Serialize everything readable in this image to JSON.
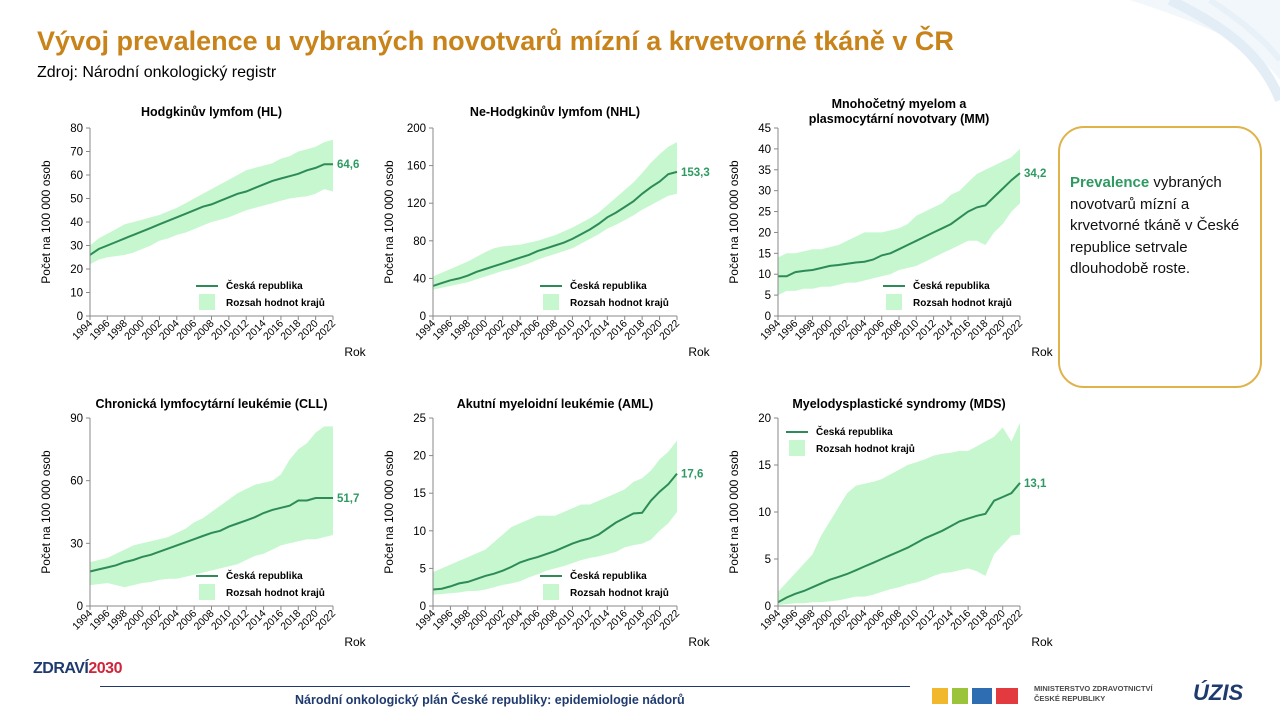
{
  "header": {
    "title": "Vývoj prevalence u vybraných novotvarů mízní a krvetvorné tkáně v ČR",
    "subtitle": "Zdroj: Národní onkologický registr"
  },
  "callout": {
    "highlight": "Prevalence",
    "rest": "vybraných novotvarů mízní a krvetvorné tkáně v České republice setrvale dlouhodobě roste."
  },
  "footer": {
    "text": "Národní onkologický plán České republiky: epidemiologie nádorů",
    "logo_left": "ZDRAVÍ",
    "logo_right": "2030",
    "ministry_line1": "MINISTERSTVO ZDRAVOTNICTVÍ",
    "ministry_line2": "ČESKÉ REPUBLIKY",
    "uzis": "ÚZIS"
  },
  "colors": {
    "line": "#2e8b57",
    "band": "#c6f7cf",
    "accent": "#c8831a",
    "label": "#2e9a62"
  },
  "chart_data": [
    {
      "type": "area",
      "title": "Hodgkinův lymfom (HL)",
      "ylabel": "Počet na 100 000 osob",
      "xlabel": "Rok",
      "ylim": [
        0,
        80
      ],
      "yticks": [
        0,
        10,
        20,
        30,
        40,
        50,
        60,
        70,
        80
      ],
      "x": [
        1994,
        1995,
        1996,
        1997,
        1998,
        1999,
        2000,
        2001,
        2002,
        2003,
        2004,
        2005,
        2006,
        2007,
        2008,
        2009,
        2010,
        2011,
        2012,
        2013,
        2014,
        2015,
        2016,
        2017,
        2018,
        2019,
        2020,
        2021,
        2022
      ],
      "end_label": "64,6",
      "legend_position": "bottom-right",
      "series": [
        {
          "name": "Česká republika",
          "values": [
            26,
            28.5,
            30,
            31.5,
            33,
            34.5,
            36,
            37.5,
            39,
            40.5,
            42,
            43.5,
            45,
            46.5,
            47.5,
            49,
            50.5,
            52,
            53,
            54.5,
            56,
            57.5,
            58.5,
            59.5,
            60.5,
            62,
            63,
            64.6,
            64.6
          ]
        },
        {
          "name": "Rozsah hodnot krajů",
          "lower": [
            22,
            24,
            25,
            25.5,
            26,
            27,
            28.5,
            30,
            32,
            33,
            34.5,
            35.5,
            37,
            38.5,
            40,
            41,
            42,
            43.5,
            45,
            46,
            47,
            48,
            49,
            50,
            50.5,
            51,
            52,
            54,
            53
          ],
          "upper": [
            30,
            33,
            35,
            37,
            39,
            40,
            41,
            42,
            43,
            44.5,
            46,
            48,
            50,
            52,
            54,
            56,
            58,
            60,
            62,
            63,
            64,
            65,
            67,
            68,
            70,
            71,
            72,
            74,
            75
          ]
        }
      ]
    },
    {
      "type": "area",
      "title": "Ne-Hodgkinův lymfom (NHL)",
      "ylabel": "Počet na 100 000 osob",
      "xlabel": "Rok",
      "ylim": [
        0,
        200
      ],
      "yticks": [
        0,
        40,
        80,
        120,
        160,
        200
      ],
      "x": [
        1994,
        1995,
        1996,
        1997,
        1998,
        1999,
        2000,
        2001,
        2002,
        2003,
        2004,
        2005,
        2006,
        2007,
        2008,
        2009,
        2010,
        2011,
        2012,
        2013,
        2014,
        2015,
        2016,
        2017,
        2018,
        2019,
        2020,
        2021,
        2022
      ],
      "end_label": "153,3",
      "legend_position": "bottom-right",
      "series": [
        {
          "name": "Česká republika",
          "values": [
            32,
            35,
            38,
            40,
            43,
            47,
            50,
            53,
            56,
            59,
            62,
            65,
            69,
            72,
            75,
            78,
            82,
            87,
            92,
            98,
            105,
            110,
            116,
            122,
            130,
            137,
            143,
            151,
            153.3
          ]
        },
        {
          "name": "Rozsah hodnot krajů",
          "lower": [
            28,
            30,
            32,
            34,
            36,
            39,
            42,
            45,
            48,
            50,
            53,
            56,
            60,
            63,
            66,
            69,
            72,
            77,
            82,
            87,
            93,
            97,
            102,
            107,
            113,
            118,
            123,
            128,
            130
          ],
          "upper": [
            42,
            46,
            50,
            54,
            58,
            63,
            68,
            72,
            74,
            75,
            76,
            78,
            80,
            83,
            86,
            90,
            94,
            99,
            104,
            110,
            118,
            126,
            134,
            142,
            152,
            163,
            172,
            180,
            185
          ]
        }
      ]
    },
    {
      "type": "area",
      "title": "Mnohočetný myelom a plasmocytární novotvary (MM)",
      "ylabel": "Počet na 100 000 osob",
      "xlabel": "Rok",
      "ylim": [
        0,
        45
      ],
      "yticks": [
        0,
        5,
        10,
        15,
        20,
        25,
        30,
        35,
        40,
        45
      ],
      "x": [
        1994,
        1995,
        1996,
        1997,
        1998,
        1999,
        2000,
        2001,
        2002,
        2003,
        2004,
        2005,
        2006,
        2007,
        2008,
        2009,
        2010,
        2011,
        2012,
        2013,
        2014,
        2015,
        2016,
        2017,
        2018,
        2019,
        2020,
        2021,
        2022
      ],
      "end_label": "34,2",
      "legend_position": "bottom-right",
      "series": [
        {
          "name": "Česká republika",
          "values": [
            9.5,
            9.5,
            10.5,
            10.8,
            11,
            11.5,
            12,
            12.2,
            12.5,
            12.8,
            13,
            13.5,
            14.5,
            15,
            16,
            17,
            18,
            19,
            20,
            21,
            22,
            23.5,
            25,
            26,
            26.5,
            28.5,
            30.5,
            32.5,
            34.2
          ]
        },
        {
          "name": "Rozsah hodnot krajů",
          "lower": [
            5,
            6,
            6,
            6.5,
            6.5,
            7,
            7,
            7.5,
            8,
            8,
            8.5,
            9,
            9.5,
            10,
            11,
            11.5,
            12,
            13,
            14,
            15,
            16,
            17,
            18,
            18,
            17,
            20,
            22,
            25,
            27
          ],
          "upper": [
            14,
            15,
            15,
            15.5,
            16,
            16,
            16.5,
            17,
            18,
            19,
            20,
            20,
            20,
            20.5,
            21,
            22,
            24,
            25,
            26,
            27,
            29,
            30,
            32,
            34,
            35,
            36,
            37,
            38,
            40
          ]
        }
      ]
    },
    {
      "type": "area",
      "title": "Chronická lymfocytární leukémie (CLL)",
      "ylabel": "Počet na 100 000 osob",
      "xlabel": "Rok",
      "ylim": [
        0,
        90
      ],
      "yticks": [
        0,
        30,
        60,
        90
      ],
      "x": [
        1994,
        1995,
        1996,
        1997,
        1998,
        1999,
        2000,
        2001,
        2002,
        2003,
        2004,
        2005,
        2006,
        2007,
        2008,
        2009,
        2010,
        2011,
        2012,
        2013,
        2014,
        2015,
        2016,
        2017,
        2018,
        2019,
        2020,
        2021,
        2022
      ],
      "end_label": "51,7",
      "legend_position": "bottom-right",
      "series": [
        {
          "name": "Česká republika",
          "values": [
            16.5,
            17.5,
            18.5,
            19.5,
            21,
            22,
            23.5,
            24.5,
            26,
            27.5,
            29,
            30.5,
            32,
            33.5,
            35,
            36,
            38,
            39.5,
            41,
            42.5,
            44.5,
            46,
            47,
            48,
            50.5,
            50.5,
            51.7,
            51.7,
            51.7
          ]
        },
        {
          "name": "Rozsah hodnot krajů",
          "lower": [
            10,
            10.5,
            11,
            10,
            9,
            10,
            11,
            11.5,
            12.5,
            13,
            13,
            14,
            15,
            16,
            17,
            18,
            19,
            20,
            22,
            24,
            25,
            27,
            29,
            30,
            31,
            32,
            32,
            33,
            34
          ],
          "upper": [
            21,
            22,
            23,
            25,
            27,
            29,
            30,
            31,
            32,
            33,
            35,
            37,
            40,
            42,
            45,
            48,
            51,
            54,
            56,
            58,
            59,
            60,
            63,
            70,
            75,
            78,
            83,
            86,
            86
          ]
        }
      ]
    },
    {
      "type": "area",
      "title": "Akutní myeloidní leukémie (AML)",
      "ylabel": "Počet na 100 000 osob",
      "xlabel": "Rok",
      "ylim": [
        0,
        25
      ],
      "yticks": [
        0,
        5,
        10,
        15,
        20,
        25
      ],
      "x": [
        1994,
        1995,
        1996,
        1997,
        1998,
        1999,
        2000,
        2001,
        2002,
        2003,
        2004,
        2005,
        2006,
        2007,
        2008,
        2009,
        2010,
        2011,
        2012,
        2013,
        2014,
        2015,
        2016,
        2017,
        2018,
        2019,
        2020,
        2021,
        2022
      ],
      "end_label": "17,6",
      "legend_position": "bottom-right",
      "series": [
        {
          "name": "Česká republika",
          "values": [
            2.2,
            2.3,
            2.6,
            3,
            3.2,
            3.6,
            4,
            4.3,
            4.7,
            5.2,
            5.8,
            6.2,
            6.5,
            6.9,
            7.3,
            7.8,
            8.3,
            8.7,
            9,
            9.5,
            10.3,
            11.1,
            11.7,
            12.3,
            12.4,
            14,
            15.2,
            16.2,
            17.6
          ]
        },
        {
          "name": "Rozsah hodnot krajů",
          "lower": [
            1.5,
            1.6,
            1.7,
            1.8,
            2,
            2,
            2.2,
            2.5,
            2.8,
            3,
            3.3,
            3.8,
            4.2,
            4.7,
            5,
            5.3,
            5.7,
            6.1,
            6.4,
            6.6,
            6.9,
            7.2,
            7.8,
            8.1,
            8.3,
            8.8,
            10,
            11,
            12.5
          ],
          "upper": [
            4.5,
            5,
            5.5,
            6,
            6.5,
            7,
            7.5,
            8.5,
            9.5,
            10.5,
            11,
            11.5,
            12,
            12,
            12,
            12.5,
            13,
            13.5,
            13.5,
            14,
            14.5,
            15,
            15.5,
            16.5,
            17,
            18,
            19.5,
            20.5,
            22
          ]
        }
      ]
    },
    {
      "type": "area",
      "title": "Myelodysplastické syndromy (MDS)",
      "ylabel": "Počet na 100 000 osob",
      "xlabel": "Rok",
      "ylim": [
        0,
        20
      ],
      "yticks": [
        0,
        5,
        10,
        15,
        20
      ],
      "x": [
        1994,
        1995,
        1996,
        1997,
        1998,
        1999,
        2000,
        2001,
        2002,
        2003,
        2004,
        2005,
        2006,
        2007,
        2008,
        2009,
        2010,
        2011,
        2012,
        2013,
        2014,
        2015,
        2016,
        2017,
        2018,
        2019,
        2020,
        2021,
        2022
      ],
      "end_label": "13,1",
      "legend_position": "top-left",
      "series": [
        {
          "name": "Česká republika",
          "values": [
            0.4,
            0.9,
            1.3,
            1.6,
            2,
            2.4,
            2.8,
            3.1,
            3.4,
            3.8,
            4.2,
            4.6,
            5,
            5.4,
            5.8,
            6.2,
            6.7,
            7.2,
            7.6,
            8,
            8.5,
            9,
            9.3,
            9.6,
            9.8,
            11.2,
            11.6,
            12,
            13.1
          ]
        },
        {
          "name": "Rozsah hodnot krajů",
          "lower": [
            0.1,
            0.2,
            0.3,
            0.3,
            0.4,
            0.4,
            0.5,
            0.6,
            0.8,
            1,
            1,
            1.2,
            1.5,
            1.8,
            2,
            2.3,
            2.5,
            2.8,
            3.2,
            3.5,
            3.6,
            3.8,
            4,
            3.7,
            3.2,
            5.5,
            6.5,
            7.5,
            7.6
          ],
          "upper": [
            1.5,
            2.5,
            3.5,
            4.5,
            5.5,
            7.5,
            9,
            10.5,
            12,
            12.8,
            13,
            13.2,
            13.5,
            14,
            14.5,
            15,
            15.3,
            15.6,
            16,
            16.2,
            16.3,
            16.5,
            16.5,
            17,
            17.5,
            18,
            19,
            17.5,
            19.5
          ]
        }
      ]
    }
  ]
}
